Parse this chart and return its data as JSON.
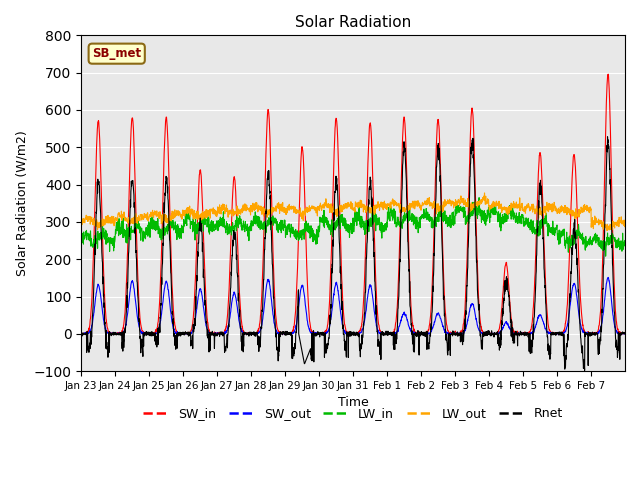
{
  "title": "Solar Radiation",
  "xlabel": "Time",
  "ylabel": "Solar Radiation (W/m2)",
  "ylim": [
    -100,
    800
  ],
  "yticks": [
    -100,
    0,
    100,
    200,
    300,
    400,
    500,
    600,
    700,
    800
  ],
  "date_labels": [
    "Jan 23",
    "Jan 24",
    "Jan 25",
    "Jan 26",
    "Jan 27",
    "Jan 28",
    "Jan 29",
    "Jan 30",
    "Jan 31",
    "Feb 1",
    "Feb 2",
    "Feb 3",
    "Feb 4",
    "Feb 5",
    "Feb 6",
    "Feb 7"
  ],
  "n_days": 16,
  "points_per_day": 144,
  "annotation_text": "SB_met",
  "colors": {
    "SW_in": "#FF0000",
    "SW_out": "#0000FF",
    "LW_in": "#00BB00",
    "LW_out": "#FFA500",
    "Rnet": "#000000"
  },
  "bg_color": "#E8E8E8",
  "grid_color": "#FFFFFF",
  "peaks_SW_in": [
    570,
    580,
    580,
    440,
    420,
    600,
    500,
    580,
    565,
    580,
    575,
    605,
    190,
    485,
    480,
    695
  ],
  "peaks_SW_out": [
    130,
    140,
    140,
    120,
    110,
    145,
    130,
    135,
    130,
    55,
    55,
    80,
    30,
    50,
    135,
    150
  ],
  "day_width": [
    0.4,
    0.4,
    0.4,
    0.38,
    0.38,
    0.4,
    0.38,
    0.4,
    0.4,
    0.4,
    0.4,
    0.4,
    0.35,
    0.4,
    0.42,
    0.4
  ],
  "LW_in_levels": [
    255,
    278,
    282,
    295,
    290,
    295,
    272,
    295,
    298,
    308,
    310,
    325,
    315,
    288,
    255,
    245
  ],
  "LW_out_levels": [
    300,
    308,
    315,
    322,
    330,
    332,
    330,
    338,
    338,
    342,
    345,
    350,
    338,
    333,
    328,
    292
  ]
}
